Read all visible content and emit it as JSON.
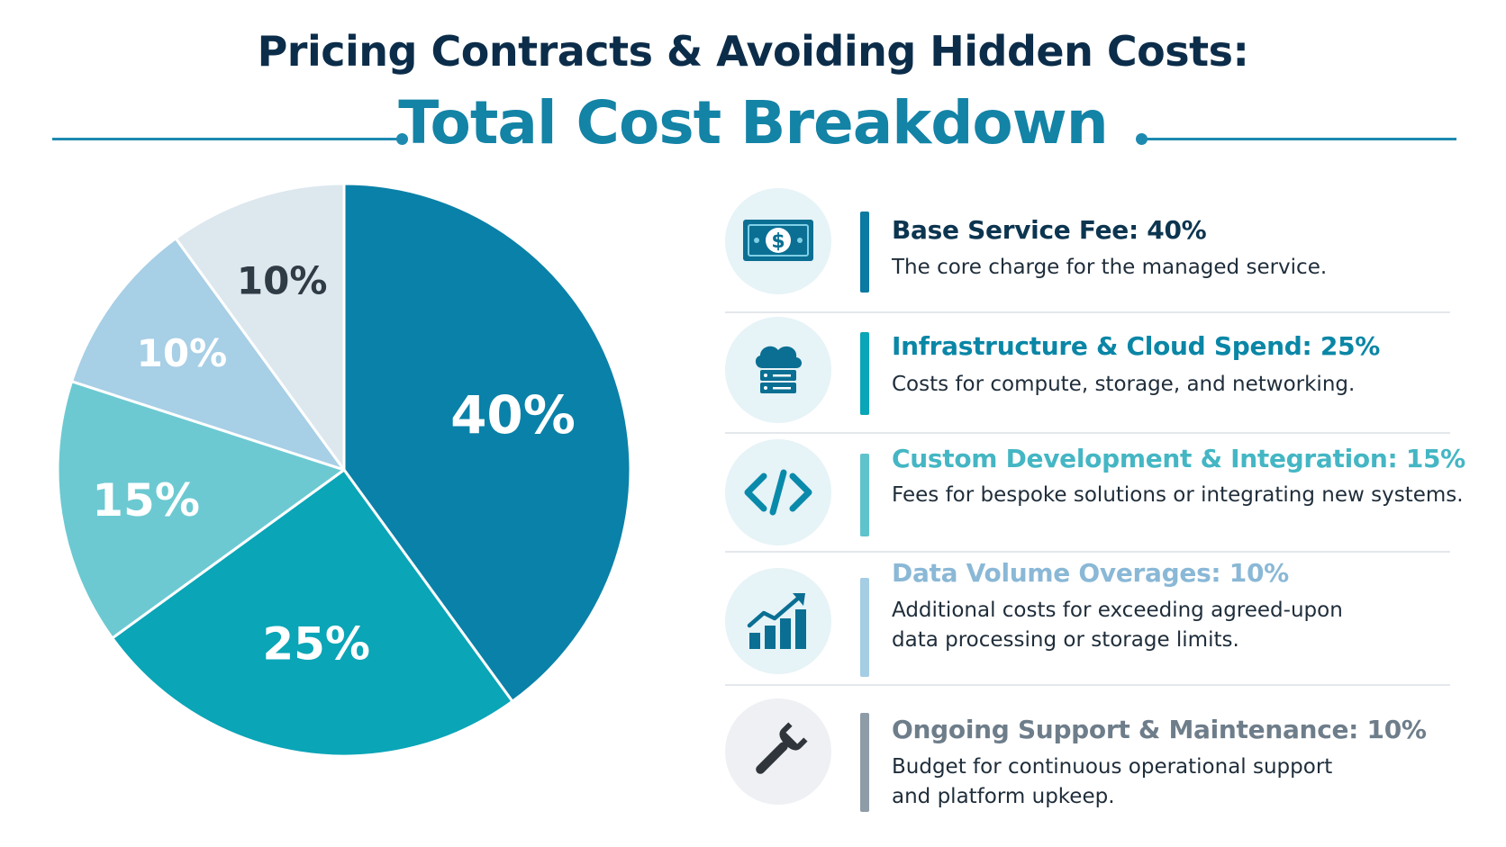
{
  "title": "Pricing Contracts & Avoiding Hidden Costs:",
  "subtitle": "Total Cost Breakdown",
  "colors": {
    "title": "#0c2d4a",
    "subtitle": "#1383a6",
    "rule": "#1e8ab0",
    "icon_bg": "#e6f3f7"
  },
  "chart_data": {
    "type": "pie",
    "title": "",
    "slices": [
      {
        "label": "Base Service Fee",
        "value": 40,
        "display": "40%",
        "color": "#0a81a8",
        "label_color": "#ffffff"
      },
      {
        "label": "Infrastructure & Cloud Spend",
        "value": 25,
        "display": "25%",
        "color": "#0aa5b7",
        "label_color": "#ffffff"
      },
      {
        "label": "Custom Development & Integration",
        "value": 15,
        "display": "15%",
        "color": "#6cc9d1",
        "label_color": "#ffffff"
      },
      {
        "label": "Data Volume Overages",
        "value": 10,
        "display": "10%",
        "color": "#a7cfe6",
        "label_color": "#ffffff"
      },
      {
        "label": "Ongoing Support & Maintenance",
        "value": 10,
        "display": "10%",
        "color": "#dde7ee",
        "label_color": "#2f3b45"
      }
    ]
  },
  "legend": [
    {
      "icon": "money-icon",
      "title": "Base Service Fee: 40%",
      "desc": "The core charge for the managed service.",
      "color": "#0a7aa2",
      "title_color": "#0c3550"
    },
    {
      "icon": "cloud-server-icon",
      "title": "Infrastructure & Cloud Spend: 25%",
      "desc": "Costs for compute, storage, and networking.",
      "color": "#0aa5b7",
      "title_color": "#0a86a6"
    },
    {
      "icon": "code-icon",
      "title": "Custom Development & Integration: 15%",
      "desc": "Fees for bespoke solutions or integrating new systems.",
      "color": "#5fc3cc",
      "title_color": "#44b6c4"
    },
    {
      "icon": "growth-chart-icon",
      "title": "Data Volume Overages: 10%",
      "desc": "Additional costs for exceeding agreed-upon data processing or storage limits.",
      "color": "#a5cde4",
      "title_color": "#8ab8d6"
    },
    {
      "icon": "wrench-icon",
      "title": "Ongoing Support & Maintenance: 10%",
      "desc": "Budget for continuous operational support and platform upkeep.",
      "color": "#8e9ca8",
      "title_color": "#6e7d8a"
    }
  ]
}
